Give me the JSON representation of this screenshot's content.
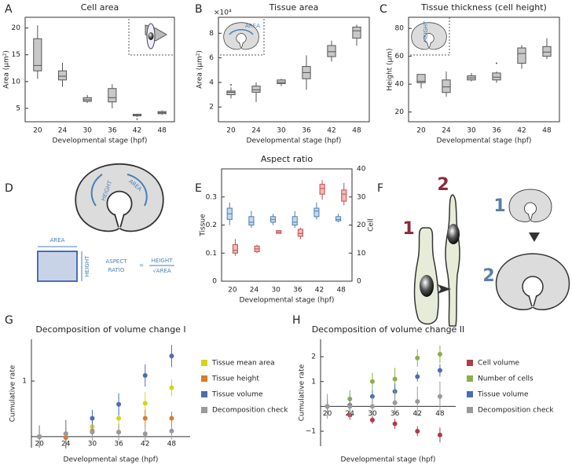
{
  "chart_data": [
    {
      "type": "box",
      "panel": "A",
      "title": "Cell area",
      "ylabel": "Area (μm²)",
      "xlabel": "Developmental stage (hpf)",
      "categories": [
        "20",
        "24",
        "30",
        "36",
        "42",
        "48"
      ],
      "ylim": [
        2.5,
        22
      ],
      "yticks": [
        5,
        10,
        15,
        20
      ],
      "series": [
        {
          "color": "#c8c8c8",
          "boxes": [
            {
              "low": 10.5,
              "q1": 12,
              "median": 13,
              "q3": 18,
              "high": 20.5
            },
            {
              "low": 9,
              "q1": 10.3,
              "median": 11,
              "q3": 12,
              "high": 13.5
            },
            {
              "low": 6,
              "q1": 6.3,
              "median": 6.6,
              "q3": 7,
              "high": 7.5
            },
            {
              "low": 5,
              "q1": 6.2,
              "median": 7,
              "q3": 8.7,
              "high": 9.5
            },
            {
              "low": 3.4,
              "q1": 3.6,
              "median": 3.8,
              "q3": 3.9,
              "high": 4,
              "outliers": [
                3
              ]
            },
            {
              "low": 3.8,
              "q1": 4,
              "median": 4.2,
              "q3": 4.4,
              "high": 4.6
            }
          ]
        }
      ]
    },
    {
      "type": "box",
      "panel": "B",
      "title": "Tissue area",
      "ylabel": "Area (μm²)",
      "y_multiplier": "×10⁴",
      "xlabel": "Developmental stage (hpf)",
      "categories": [
        "20",
        "24",
        "30",
        "36",
        "42",
        "48"
      ],
      "ylim": [
        0.8,
        9.3
      ],
      "yticks": [
        2,
        4,
        6,
        8
      ],
      "series": [
        {
          "color": "#c8c8c8",
          "boxes": [
            {
              "low": 2.7,
              "q1": 3,
              "median": 3.2,
              "q3": 3.3,
              "high": 3.6,
              "outliers": [
                3.8
              ]
            },
            {
              "low": 2.4,
              "q1": 3.2,
              "median": 3.4,
              "q3": 3.7,
              "high": 4
            },
            {
              "low": 3.7,
              "q1": 3.9,
              "median": 4,
              "q3": 4.2,
              "high": 4.3
            },
            {
              "low": 3.4,
              "q1": 4.3,
              "median": 4.8,
              "q3": 5.3,
              "high": 6.2
            },
            {
              "low": 5.7,
              "q1": 6.1,
              "median": 6.5,
              "q3": 7,
              "high": 7.4
            },
            {
              "low": 7,
              "q1": 7.6,
              "median": 8.2,
              "q3": 8.5,
              "high": 8.7
            }
          ]
        }
      ]
    },
    {
      "type": "box",
      "panel": "C",
      "title": "Tissue thickness (cell height)",
      "ylabel": "Height (μm)",
      "xlabel": "Developmental stage (hpf)",
      "categories": [
        "20",
        "24",
        "30",
        "36",
        "42",
        "48"
      ],
      "ylim": [
        13,
        88
      ],
      "yticks": [
        20,
        40,
        60,
        80
      ],
      "series": [
        {
          "color": "#c8c8c8",
          "boxes": [
            {
              "low": 37,
              "q1": 41,
              "median": 42,
              "q3": 47,
              "high": 47
            },
            {
              "low": 31,
              "q1": 34,
              "median": 38,
              "q3": 43,
              "high": 49
            },
            {
              "low": 42,
              "q1": 43,
              "median": 44.5,
              "q3": 46,
              "high": 48
            },
            {
              "low": 41,
              "q1": 43,
              "median": 45,
              "q3": 48,
              "high": 49,
              "outliers": [
                55
              ]
            },
            {
              "low": 51,
              "q1": 55,
              "median": 62,
              "q3": 66,
              "high": 68
            },
            {
              "low": 58,
              "q1": 60,
              "median": 63,
              "q3": 67,
              "high": 73
            }
          ]
        }
      ]
    },
    {
      "type": "box",
      "panel": "E",
      "title": "Aspect ratio",
      "ylabel": "Tissue",
      "y2label": "Cell",
      "ycolor": "#4a7fb5",
      "y2color": "#c0504d",
      "xlabel": "Developmental stage (hpf)",
      "categories": [
        "20",
        "24",
        "30",
        "36",
        "42",
        "48"
      ],
      "ylim": [
        0,
        0.4
      ],
      "yticks": [
        0,
        0.1,
        0.2,
        0.3
      ],
      "y2lim": [
        0,
        40
      ],
      "y2ticks": [
        0,
        10,
        20,
        30,
        40
      ],
      "series": [
        {
          "color": "#c5d8ea",
          "boxes": [
            {
              "low": 0.2,
              "q1": 0.22,
              "median": 0.24,
              "q3": 0.26,
              "high": 0.28
            },
            {
              "low": 0.19,
              "q1": 0.2,
              "median": 0.21,
              "q3": 0.23,
              "high": 0.25
            },
            {
              "low": 0.2,
              "q1": 0.21,
              "median": 0.22,
              "q3": 0.23,
              "high": 0.24
            },
            {
              "low": 0.19,
              "q1": 0.2,
              "median": 0.21,
              "q3": 0.23,
              "high": 0.25
            },
            {
              "low": 0.22,
              "q1": 0.23,
              "median": 0.25,
              "q3": 0.26,
              "high": 0.28
            },
            {
              "low": 0.21,
              "q1": 0.215,
              "median": 0.22,
              "q3": 0.23,
              "high": 0.24
            }
          ]
        },
        {
          "color": "#f2b8b8",
          "axis": "y2",
          "boxes": [
            {
              "low": 9,
              "q1": 10,
              "median": 11,
              "q3": 13,
              "high": 15
            },
            {
              "low": 10,
              "q1": 10.5,
              "median": 11.5,
              "q3": 12.5,
              "high": 13
            },
            {
              "low": 17,
              "q1": 17,
              "median": 17.5,
              "q3": 18,
              "high": 18
            },
            {
              "low": 15,
              "q1": 16,
              "median": 17,
              "q3": 18.5,
              "high": 19
            },
            {
              "low": 29,
              "q1": 31,
              "median": 33,
              "q3": 34.5,
              "high": 36
            },
            {
              "low": 27,
              "q1": 28.5,
              "median": 31,
              "q3": 32.5,
              "high": 35
            }
          ]
        }
      ]
    },
    {
      "type": "scatter",
      "panel": "G",
      "title": "Decomposition of volume change I",
      "ylabel": "Cumulative rate",
      "xlabel": "Developmental stage (hpf)",
      "legend": "right",
      "categories": [
        "20",
        "24",
        "30",
        "36",
        "42",
        "48"
      ],
      "ylim": [
        -0.2,
        1.75
      ],
      "yticks": [
        1
      ],
      "series": [
        {
          "name": "Tissue mean area",
          "color": "#d4d41a",
          "values": [
            0,
            0.05,
            0.18,
            0.33,
            0.6,
            0.88
          ],
          "errors": [
            0.2,
            0.2,
            0.1,
            0.15,
            0.2,
            0.15
          ]
        },
        {
          "name": "Tissue height",
          "color": "#d97b2a",
          "values": [
            0,
            -0.02,
            0.1,
            0.08,
            0.33,
            0.33
          ],
          "errors": [
            0.2,
            0.2,
            0.1,
            0.1,
            0.15,
            0.12
          ]
        },
        {
          "name": "Tissue volume",
          "color": "#4a6fb0",
          "values": [
            0,
            0.05,
            0.33,
            0.58,
            1.1,
            1.45
          ],
          "errors": [
            0.2,
            0.25,
            0.15,
            0.2,
            0.2,
            0.2
          ]
        },
        {
          "name": "Decomposition check",
          "color": "#9a9a9a",
          "values": [
            0,
            0.05,
            0.08,
            0.08,
            0.05,
            0.1
          ],
          "errors": [
            0.2,
            0.2,
            0.15,
            0.15,
            0.15,
            0.15
          ]
        }
      ]
    },
    {
      "type": "scatter",
      "panel": "H",
      "title": "Decomposition of volume change II",
      "ylabel": "Cumulative rate",
      "xlabel": "Developmental stage (hpf)",
      "legend": "right",
      "categories": [
        "20",
        "24",
        "30",
        "36",
        "42",
        "48"
      ],
      "ylim": [
        -1.6,
        2.7
      ],
      "yticks": [
        {
          "value": -1,
          "label": "−1"
        },
        1,
        2
      ],
      "series": [
        {
          "name": "Cell volume",
          "color": "#b03a4a",
          "values": [
            0,
            -0.35,
            -0.55,
            -0.7,
            -1,
            -1.15
          ],
          "errors": [
            0.2,
            0.2,
            0.15,
            0.2,
            0.2,
            0.3
          ]
        },
        {
          "name": "Number of cells",
          "color": "#8ab04a",
          "values": [
            0,
            0.3,
            1,
            1.1,
            1.95,
            2.1
          ],
          "errors": [
            0.3,
            0.35,
            0.35,
            0.45,
            0.35,
            0.35
          ]
        },
        {
          "name": "Tissue volume",
          "color": "#4a6fb0",
          "values": [
            0,
            0.05,
            0.4,
            0.6,
            1.2,
            1.45
          ],
          "errors": [
            0.3,
            0.3,
            0.25,
            0.3,
            0.2,
            0.25
          ]
        },
        {
          "name": "Decomposition check",
          "color": "#9a9a9a",
          "values": [
            0,
            0,
            0,
            0.15,
            0.2,
            0.4
          ],
          "errors": [
            0.5,
            0.5,
            0.4,
            0.5,
            0.6,
            0.6
          ]
        }
      ]
    }
  ],
  "insets": {
    "B": "AREA",
    "C": "HEIGHT"
  },
  "diagrams": {
    "D": {
      "panel": "D",
      "shape_height": "HEIGHT",
      "shape_area": "AREA",
      "rect_area": "AREA",
      "rect_height": "HEIGHT",
      "aspect": "ASPECT",
      "ratio": "RATIO",
      "equals": "=",
      "numerator": "HEIGHT",
      "denominator": "√AREA"
    },
    "F": {
      "panel": "F",
      "cell_1": "1",
      "cell_2": "2",
      "tissue_1": "1",
      "tissue_2": "2"
    }
  }
}
